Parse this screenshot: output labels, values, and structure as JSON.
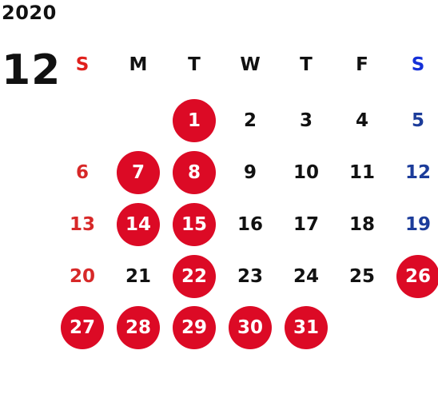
{
  "year": "2020",
  "month": "12",
  "weekdays": [
    "S",
    "M",
    "T",
    "W",
    "T",
    "F",
    "S"
  ],
  "weeks": [
    [
      null,
      null,
      {
        "d": "1",
        "m": true
      },
      {
        "d": "2",
        "m": false
      },
      {
        "d": "3",
        "m": false
      },
      {
        "d": "4",
        "m": false
      },
      {
        "d": "5",
        "m": false
      }
    ],
    [
      {
        "d": "6",
        "m": false
      },
      {
        "d": "7",
        "m": true
      },
      {
        "d": "8",
        "m": true
      },
      {
        "d": "9",
        "m": false
      },
      {
        "d": "10",
        "m": false
      },
      {
        "d": "11",
        "m": false
      },
      {
        "d": "12",
        "m": false
      }
    ],
    [
      {
        "d": "13",
        "m": false
      },
      {
        "d": "14",
        "m": true
      },
      {
        "d": "15",
        "m": true
      },
      {
        "d": "16",
        "m": false
      },
      {
        "d": "17",
        "m": false
      },
      {
        "d": "18",
        "m": false
      },
      {
        "d": "19",
        "m": false
      }
    ],
    [
      {
        "d": "20",
        "m": false
      },
      {
        "d": "21",
        "m": false
      },
      {
        "d": "22",
        "m": true
      },
      {
        "d": "23",
        "m": false
      },
      {
        "d": "24",
        "m": false
      },
      {
        "d": "25",
        "m": false
      },
      {
        "d": "26",
        "m": true
      }
    ],
    [
      {
        "d": "27",
        "m": true
      },
      {
        "d": "28",
        "m": true
      },
      {
        "d": "29",
        "m": true
      },
      {
        "d": "30",
        "m": true
      },
      {
        "d": "31",
        "m": true
      },
      null,
      null
    ]
  ],
  "colors": {
    "marked_circle": "#dc0a25",
    "sunday": "#d72828",
    "saturday": "#1c3c9a",
    "sunday_header": "#e0201c",
    "saturday_header": "#1430d8",
    "text": "#111111"
  }
}
